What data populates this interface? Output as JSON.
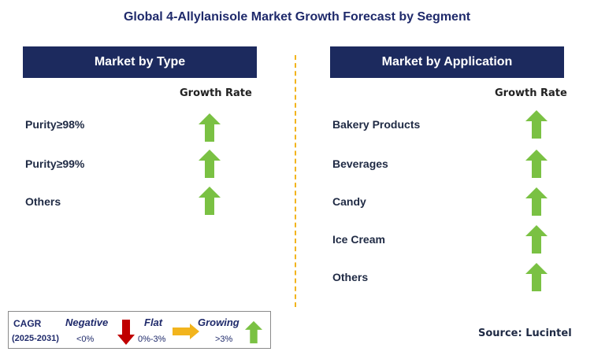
{
  "title": "Global 4-Allylanisole Market Growth Forecast by Segment",
  "left_panel": {
    "header": "Market by Type",
    "growth_label": "Growth Rate",
    "items": [
      {
        "label": "Purity≥98%",
        "trend": "growing"
      },
      {
        "label": "Purity≥99%",
        "trend": "growing"
      },
      {
        "label": "Others",
        "trend": "growing"
      }
    ]
  },
  "right_panel": {
    "header": "Market by Application",
    "growth_label": "Growth Rate",
    "items": [
      {
        "label": "Bakery Products",
        "trend": "growing"
      },
      {
        "label": "Beverages",
        "trend": "growing"
      },
      {
        "label": "Candy",
        "trend": "growing"
      },
      {
        "label": "Ice Cream",
        "trend": "growing"
      },
      {
        "label": "Others",
        "trend": "growing"
      }
    ]
  },
  "legend": {
    "cagr": "CAGR",
    "period": "(2025-2031)",
    "negative": {
      "label": "Negative",
      "range": "<0%",
      "icon": "down-arrow-icon",
      "color": "#c00000"
    },
    "flat": {
      "label": "Flat",
      "range": "0%-3%",
      "icon": "right-arrow-icon",
      "color": "#f2b41d"
    },
    "growing": {
      "label": "Growing",
      "range": ">3%",
      "icon": "up-arrow-icon",
      "color": "#7ac143"
    }
  },
  "source": "Source: Lucintel",
  "colors": {
    "header_bg": "#1c2a5e",
    "up_arrow": "#7ac143",
    "divider": "#f2b41d"
  }
}
